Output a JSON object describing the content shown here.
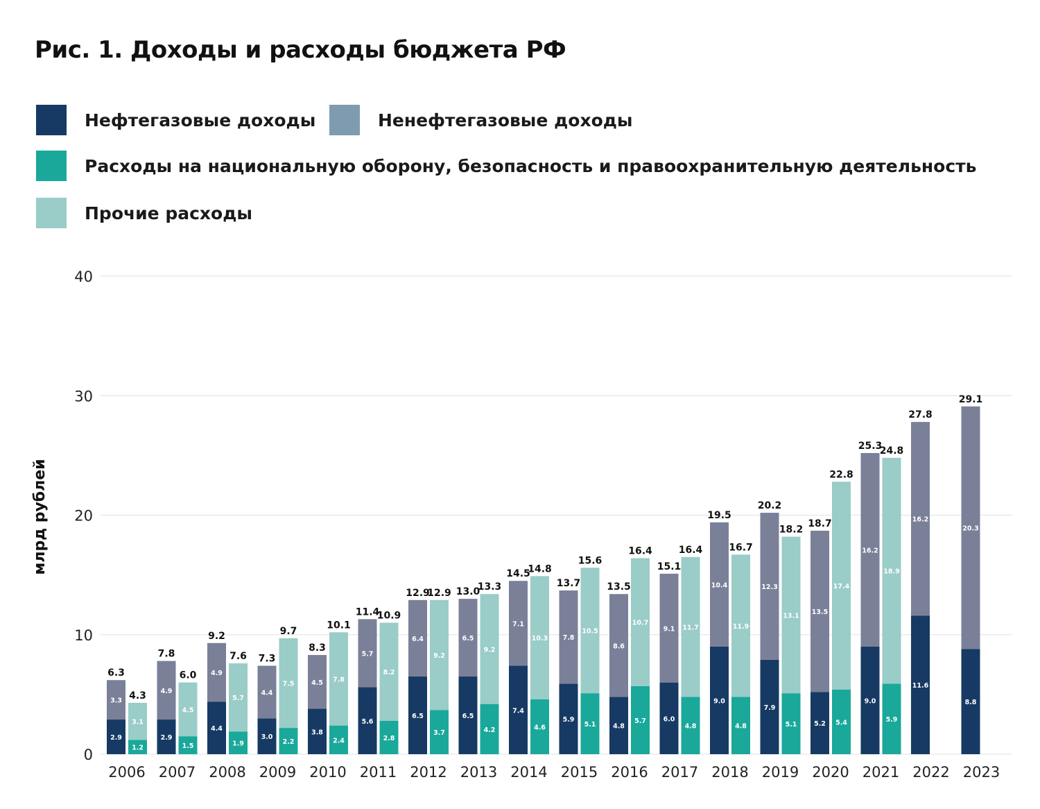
{
  "title": "Рис. 1. Доходы и расходы бюджета РФ",
  "colors": {
    "oil_gas": "#163a63",
    "non_oil_gas": "#7b8099",
    "defense": "#1aa89a",
    "other": "#9accc8",
    "legend_non_oil_gas": "#7f9bb0"
  },
  "legend": [
    {
      "label": "Нефтегазовые доходы"
    },
    {
      "label": "Ненефтегазовые доходы"
    },
    {
      "label": "Расходы на национальную оборону, безопасность и правоохранительную деятельность"
    },
    {
      "label": "Прочие расходы"
    }
  ],
  "chart_data": {
    "type": "bar",
    "stacked": true,
    "title": "Рис. 1. Доходы и расходы бюджета РФ",
    "xlabel": "",
    "ylabel": "млрд рублей",
    "ylim": [
      0,
      40
    ],
    "yticks": [
      "0",
      "10",
      "20",
      "30",
      "40"
    ],
    "grid": true,
    "legend_position": "top-left",
    "categories": [
      "2006",
      "2007",
      "2008",
      "2009",
      "2010",
      "2011",
      "2012",
      "2013",
      "2014",
      "2015",
      "2016",
      "2017",
      "2018",
      "2019",
      "2020",
      "2021",
      "2022",
      "2023"
    ],
    "income": {
      "oil_gas": [
        2.9,
        2.9,
        4.4,
        3.0,
        3.8,
        5.6,
        6.5,
        6.5,
        7.4,
        5.9,
        4.8,
        6.0,
        9.0,
        7.9,
        5.2,
        9.0,
        11.6,
        8.8
      ],
      "non_oil_gas": [
        3.3,
        4.9,
        4.9,
        4.4,
        4.5,
        5.7,
        6.4,
        6.5,
        7.1,
        7.8,
        8.6,
        9.1,
        10.4,
        12.3,
        13.5,
        16.2,
        16.2,
        20.3
      ],
      "total": [
        "6.3",
        "7.8",
        "9.2",
        "7.3",
        "8.3",
        "11.4",
        "12.9",
        "13.0",
        "14.5",
        "13.7",
        "13.5",
        "15.1",
        "19.5",
        "20.2",
        "18.7",
        "25.3",
        "27.8",
        "29.1"
      ]
    },
    "expenses": {
      "defense": [
        1.2,
        1.5,
        1.9,
        2.2,
        2.4,
        2.8,
        3.7,
        4.2,
        4.6,
        5.1,
        5.7,
        4.8,
        4.8,
        5.1,
        5.4,
        5.9,
        null,
        null
      ],
      "other": [
        3.1,
        4.5,
        5.7,
        7.5,
        7.8,
        8.2,
        9.2,
        9.2,
        10.3,
        10.5,
        10.7,
        11.7,
        11.9,
        13.1,
        17.4,
        18.9,
        null,
        null
      ],
      "total": [
        "4.3",
        "6.0",
        "7.6",
        "9.7",
        "10.1",
        "10.9",
        "12.9",
        "13.3",
        "14.8",
        "15.6",
        "16.4",
        "16.4",
        "16.7",
        "18.2",
        "22.8",
        "24.8",
        null,
        null
      ]
    }
  }
}
